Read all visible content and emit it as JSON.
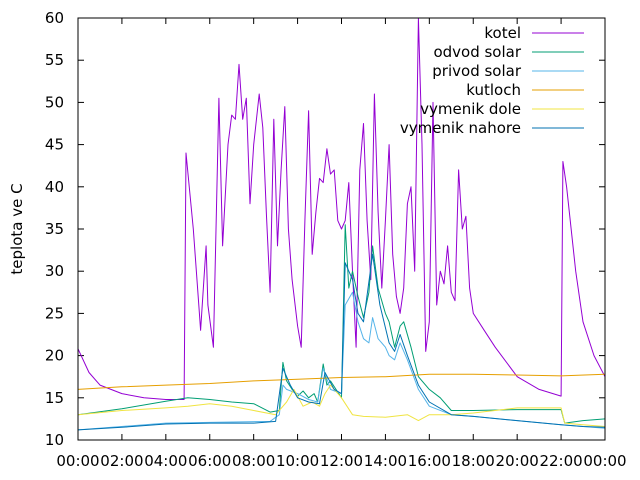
{
  "chart_data": {
    "type": "line",
    "ylabel": "teplota ve C",
    "ylim": [
      10,
      60
    ],
    "xlim": [
      "00:00",
      "24:00"
    ],
    "y_ticks": [
      "10",
      "15",
      "20",
      "25",
      "30",
      "35",
      "40",
      "45",
      "50",
      "55",
      "60"
    ],
    "x_ticks": [
      "00:00",
      "02:00",
      "04:00",
      "06:00",
      "08:00",
      "10:00",
      "12:00",
      "14:00",
      "16:00",
      "18:00",
      "20:00",
      "22:00",
      "00:00"
    ],
    "legend_position": "top-right",
    "grid": false,
    "series": [
      {
        "name": "kotel",
        "color": "#9400d3",
        "points": [
          [
            "00:00",
            20.8
          ],
          [
            "00:30",
            18.0
          ],
          [
            "01:00",
            16.5
          ],
          [
            "02:00",
            15.5
          ],
          [
            "03:00",
            15.0
          ],
          [
            "04:00",
            14.8
          ],
          [
            "04:50",
            14.8
          ],
          [
            "04:55",
            44.0
          ],
          [
            "05:15",
            35.0
          ],
          [
            "05:30",
            26.0
          ],
          [
            "05:35",
            23.0
          ],
          [
            "05:50",
            33.0
          ],
          [
            "05:55",
            26.0
          ],
          [
            "06:10",
            21.0
          ],
          [
            "06:25",
            50.5
          ],
          [
            "06:35",
            33.0
          ],
          [
            "06:50",
            45.0
          ],
          [
            "07:00",
            48.5
          ],
          [
            "07:10",
            48.0
          ],
          [
            "07:20",
            54.5
          ],
          [
            "07:30",
            48.0
          ],
          [
            "07:40",
            50.5
          ],
          [
            "07:50",
            38.0
          ],
          [
            "08:00",
            45.0
          ],
          [
            "08:15",
            51.0
          ],
          [
            "08:25",
            47.0
          ],
          [
            "08:35",
            36.5
          ],
          [
            "08:45",
            27.5
          ],
          [
            "08:55",
            48.0
          ],
          [
            "09:05",
            33.0
          ],
          [
            "09:15",
            42.0
          ],
          [
            "09:25",
            49.5
          ],
          [
            "09:35",
            35.0
          ],
          [
            "09:45",
            29.0
          ],
          [
            "10:00",
            23.5
          ],
          [
            "10:10",
            21.0
          ],
          [
            "10:20",
            36.0
          ],
          [
            "10:30",
            49.0
          ],
          [
            "10:40",
            32.0
          ],
          [
            "10:50",
            37.0
          ],
          [
            "11:00",
            41.0
          ],
          [
            "11:10",
            40.5
          ],
          [
            "11:20",
            44.5
          ],
          [
            "11:30",
            41.5
          ],
          [
            "11:40",
            42.0
          ],
          [
            "11:50",
            36.0
          ],
          [
            "12:00",
            35.0
          ],
          [
            "12:10",
            36.0
          ],
          [
            "12:20",
            40.5
          ],
          [
            "12:30",
            30.0
          ],
          [
            "12:40",
            21.0
          ],
          [
            "12:50",
            42.0
          ],
          [
            "13:00",
            47.5
          ],
          [
            "13:10",
            36.0
          ],
          [
            "13:20",
            29.0
          ],
          [
            "13:30",
            51.0
          ],
          [
            "13:40",
            37.0
          ],
          [
            "13:50",
            28.0
          ],
          [
            "14:00",
            36.0
          ],
          [
            "14:10",
            45.0
          ],
          [
            "14:20",
            32.0
          ],
          [
            "14:30",
            27.0
          ],
          [
            "14:40",
            25.0
          ],
          [
            "14:50",
            28.0
          ],
          [
            "15:00",
            38.0
          ],
          [
            "15:10",
            40.0
          ],
          [
            "15:20",
            30.0
          ],
          [
            "15:30",
            60.0
          ],
          [
            "15:40",
            45.0
          ],
          [
            "15:50",
            20.5
          ],
          [
            "16:00",
            24.0
          ],
          [
            "16:10",
            50.0
          ],
          [
            "16:20",
            26.0
          ],
          [
            "16:30",
            30.0
          ],
          [
            "16:40",
            28.5
          ],
          [
            "16:50",
            33.0
          ],
          [
            "17:00",
            27.5
          ],
          [
            "17:10",
            26.5
          ],
          [
            "17:20",
            42.0
          ],
          [
            "17:30",
            35.0
          ],
          [
            "17:40",
            36.5
          ],
          [
            "17:50",
            28.0
          ],
          [
            "18:00",
            25.0
          ],
          [
            "18:30",
            23.0
          ],
          [
            "19:00",
            21.0
          ],
          [
            "20:00",
            17.5
          ],
          [
            "21:00",
            16.0
          ],
          [
            "22:00",
            15.2
          ],
          [
            "22:05",
            43.0
          ],
          [
            "22:15",
            40.0
          ],
          [
            "22:40",
            30.0
          ],
          [
            "23:00",
            24.0
          ],
          [
            "23:30",
            20.0
          ],
          [
            "24:00",
            17.5
          ]
        ]
      },
      {
        "name": "odvod solar",
        "color": "#009e73",
        "points": [
          [
            "00:00",
            13.0
          ],
          [
            "02:00",
            13.7
          ],
          [
            "04:00",
            14.6
          ],
          [
            "05:00",
            15.0
          ],
          [
            "06:00",
            14.8
          ],
          [
            "07:00",
            14.5
          ],
          [
            "08:00",
            14.3
          ],
          [
            "08:45",
            13.3
          ],
          [
            "09:10",
            13.5
          ],
          [
            "09:20",
            19.2
          ],
          [
            "09:30",
            17.0
          ],
          [
            "09:45",
            16.0
          ],
          [
            "10:00",
            15.2
          ],
          [
            "10:15",
            15.8
          ],
          [
            "10:30",
            15.0
          ],
          [
            "10:45",
            15.5
          ],
          [
            "10:55",
            14.5
          ],
          [
            "11:10",
            19.0
          ],
          [
            "11:20",
            16.5
          ],
          [
            "11:30",
            17.0
          ],
          [
            "11:45",
            16.0
          ],
          [
            "12:00",
            15.0
          ],
          [
            "12:10",
            35.5
          ],
          [
            "12:20",
            28.0
          ],
          [
            "12:30",
            30.0
          ],
          [
            "12:45",
            27.0
          ],
          [
            "13:00",
            24.5
          ],
          [
            "13:15",
            27.5
          ],
          [
            "13:25",
            33.0
          ],
          [
            "13:40",
            28.0
          ],
          [
            "14:00",
            25.0
          ],
          [
            "14:10",
            24.0
          ],
          [
            "14:25",
            21.0
          ],
          [
            "14:40",
            23.5
          ],
          [
            "14:50",
            24.0
          ],
          [
            "15:10",
            21.0
          ],
          [
            "15:30",
            17.5
          ],
          [
            "16:00",
            16.0
          ],
          [
            "16:30",
            15.0
          ],
          [
            "17:00",
            13.5
          ],
          [
            "18:00",
            13.5
          ],
          [
            "20:00",
            13.6
          ],
          [
            "22:00",
            13.6
          ],
          [
            "22:10",
            12.0
          ],
          [
            "23:00",
            12.3
          ],
          [
            "24:00",
            12.5
          ]
        ]
      },
      {
        "name": "privod solar",
        "color": "#56b4e9",
        "points": [
          [
            "00:00",
            11.2
          ],
          [
            "04:00",
            12.0
          ],
          [
            "08:45",
            12.2
          ],
          [
            "09:10",
            13.0
          ],
          [
            "09:20",
            16.5
          ],
          [
            "09:30",
            16.0
          ],
          [
            "10:00",
            15.5
          ],
          [
            "10:30",
            14.8
          ],
          [
            "10:55",
            14.5
          ],
          [
            "11:10",
            18.5
          ],
          [
            "11:30",
            16.0
          ],
          [
            "12:00",
            15.5
          ],
          [
            "12:10",
            26.0
          ],
          [
            "12:30",
            27.5
          ],
          [
            "12:45",
            24.0
          ],
          [
            "13:00",
            22.0
          ],
          [
            "13:15",
            21.5
          ],
          [
            "13:25",
            24.5
          ],
          [
            "13:40",
            22.0
          ],
          [
            "14:00",
            21.0
          ],
          [
            "14:10",
            20.0
          ],
          [
            "14:25",
            19.5
          ],
          [
            "14:40",
            21.5
          ],
          [
            "15:00",
            19.5
          ],
          [
            "15:30",
            16.0
          ],
          [
            "16:00",
            14.0
          ],
          [
            "17:00",
            13.0
          ],
          [
            "18:00",
            12.8
          ],
          [
            "20:00",
            12.3
          ],
          [
            "22:00",
            11.8
          ],
          [
            "23:00",
            11.6
          ],
          [
            "24:00",
            11.4
          ]
        ]
      },
      {
        "name": "kutloch",
        "color": "#e69f00",
        "points": [
          [
            "00:00",
            16.0
          ],
          [
            "02:00",
            16.3
          ],
          [
            "04:00",
            16.5
          ],
          [
            "06:00",
            16.7
          ],
          [
            "08:00",
            17.0
          ],
          [
            "10:00",
            17.2
          ],
          [
            "12:00",
            17.4
          ],
          [
            "14:00",
            17.5
          ],
          [
            "16:00",
            17.8
          ],
          [
            "18:00",
            17.8
          ],
          [
            "20:00",
            17.7
          ],
          [
            "22:00",
            17.6
          ],
          [
            "24:00",
            17.8
          ]
        ]
      },
      {
        "name": "vymenik dole",
        "color": "#f0e442",
        "points": [
          [
            "00:00",
            13.0
          ],
          [
            "02:00",
            13.5
          ],
          [
            "04:00",
            13.8
          ],
          [
            "05:00",
            14.0
          ],
          [
            "06:00",
            14.3
          ],
          [
            "07:00",
            14.0
          ],
          [
            "08:00",
            13.5
          ],
          [
            "09:00",
            13.0
          ],
          [
            "09:30",
            14.5
          ],
          [
            "09:50",
            16.0
          ],
          [
            "10:15",
            14.0
          ],
          [
            "10:40",
            14.5
          ],
          [
            "11:00",
            14.0
          ],
          [
            "11:15",
            15.5
          ],
          [
            "11:30",
            16.5
          ],
          [
            "12:00",
            15.0
          ],
          [
            "12:30",
            13.0
          ],
          [
            "13:00",
            12.8
          ],
          [
            "14:00",
            12.7
          ],
          [
            "15:00",
            13.0
          ],
          [
            "15:30",
            12.3
          ],
          [
            "16:00",
            13.0
          ],
          [
            "17:00",
            13.0
          ],
          [
            "18:00",
            13.2
          ],
          [
            "20:00",
            13.8
          ],
          [
            "22:00",
            13.8
          ],
          [
            "22:10",
            12.0
          ],
          [
            "23:00",
            11.8
          ],
          [
            "24:00",
            11.6
          ]
        ]
      },
      {
        "name": "vymenik nahore",
        "color": "#0072b2",
        "points": [
          [
            "00:00",
            11.2
          ],
          [
            "02:00",
            11.5
          ],
          [
            "04:00",
            11.9
          ],
          [
            "06:00",
            12.0
          ],
          [
            "08:00",
            12.0
          ],
          [
            "09:00",
            12.2
          ],
          [
            "09:20",
            18.5
          ],
          [
            "09:40",
            16.5
          ],
          [
            "10:00",
            15.0
          ],
          [
            "10:30",
            14.5
          ],
          [
            "11:00",
            14.3
          ],
          [
            "11:15",
            18.0
          ],
          [
            "11:40",
            16.0
          ],
          [
            "12:00",
            15.5
          ],
          [
            "12:10",
            31.0
          ],
          [
            "12:30",
            29.0
          ],
          [
            "12:45",
            25.0
          ],
          [
            "13:00",
            24.0
          ],
          [
            "13:25",
            32.0
          ],
          [
            "13:45",
            26.0
          ],
          [
            "14:10",
            21.5
          ],
          [
            "14:25",
            20.5
          ],
          [
            "14:40",
            22.5
          ],
          [
            "15:00",
            20.0
          ],
          [
            "15:30",
            16.5
          ],
          [
            "16:00",
            14.5
          ],
          [
            "17:00",
            13.0
          ],
          [
            "18:00",
            12.8
          ],
          [
            "20:00",
            12.3
          ],
          [
            "22:00",
            11.8
          ],
          [
            "23:00",
            11.6
          ],
          [
            "24:00",
            11.5
          ]
        ]
      }
    ]
  }
}
